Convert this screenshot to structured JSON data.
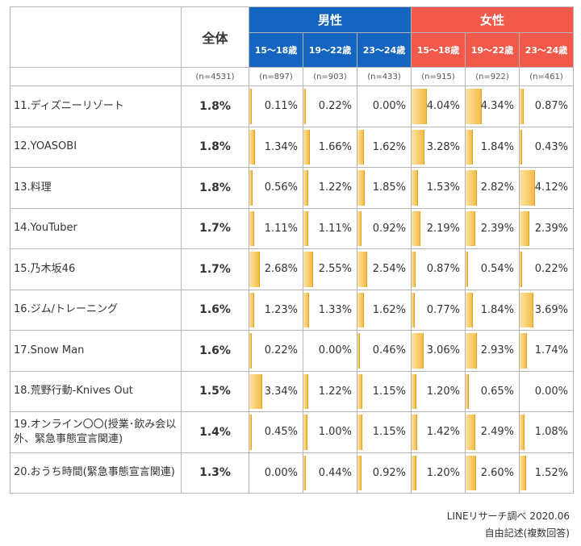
{
  "header": {
    "total_label": "全体",
    "male_label": "男性",
    "female_label": "女性",
    "age_groups": [
      "15〜18歳",
      "19〜22歳",
      "23〜24歳"
    ],
    "sample_sizes": [
      "(n=4531)",
      "(n=897)",
      "(n=903)",
      "(n=433)",
      "(n=915)",
      "(n=922)",
      "(n=461)"
    ]
  },
  "rows": [
    {
      "label": "11.ディズニーリゾート",
      "total": "1.8%",
      "values": [
        "0.11%",
        "0.22%",
        "0.00%",
        "4.04%",
        "4.34%",
        "0.87%"
      ]
    },
    {
      "label": "12.YOASOBI",
      "total": "1.8%",
      "values": [
        "1.34%",
        "1.66%",
        "1.62%",
        "3.28%",
        "1.84%",
        "0.43%"
      ]
    },
    {
      "label": "13.料理",
      "total": "1.8%",
      "values": [
        "0.56%",
        "1.22%",
        "1.85%",
        "1.53%",
        "2.82%",
        "4.12%"
      ]
    },
    {
      "label": "14.YouTuber",
      "total": "1.7%",
      "values": [
        "1.11%",
        "1.11%",
        "0.92%",
        "2.19%",
        "2.39%",
        "2.39%"
      ]
    },
    {
      "label": "15.乃木坂46",
      "total": "1.7%",
      "values": [
        "2.68%",
        "2.55%",
        "2.54%",
        "0.87%",
        "0.54%",
        "0.22%"
      ]
    },
    {
      "label": "16.ジム/トレーニング",
      "total": "1.6%",
      "values": [
        "1.23%",
        "1.33%",
        "1.62%",
        "0.77%",
        "1.84%",
        "3.69%"
      ]
    },
    {
      "label": "17.Snow Man",
      "total": "1.6%",
      "values": [
        "0.22%",
        "0.00%",
        "0.46%",
        "3.06%",
        "2.93%",
        "1.74%"
      ]
    },
    {
      "label": "18.荒野行動-Knives Out",
      "total": "1.5%",
      "values": [
        "3.34%",
        "1.22%",
        "1.15%",
        "1.20%",
        "0.65%",
        "0.00%"
      ]
    },
    {
      "label": "19.オンライン〇〇(授業･飲み会以外、緊急事態宣言関連)",
      "total": "1.4%",
      "values": [
        "0.45%",
        "1.00%",
        "1.15%",
        "1.42%",
        "2.49%",
        "1.08%"
      ]
    },
    {
      "label": "20.おうち時間(緊急事態宣言関連)",
      "total": "1.3%",
      "values": [
        "0.00%",
        "0.44%",
        "0.92%",
        "1.20%",
        "2.60%",
        "1.52%"
      ]
    }
  ],
  "bar_scale_max": 15,
  "colors": {
    "male": "#1565c0",
    "female": "#f15a4a",
    "bar": "#f5bd45"
  },
  "footer": {
    "source": "LINEリサーチ調べ 2020.06",
    "method": "自由記述(複数回答)"
  }
}
